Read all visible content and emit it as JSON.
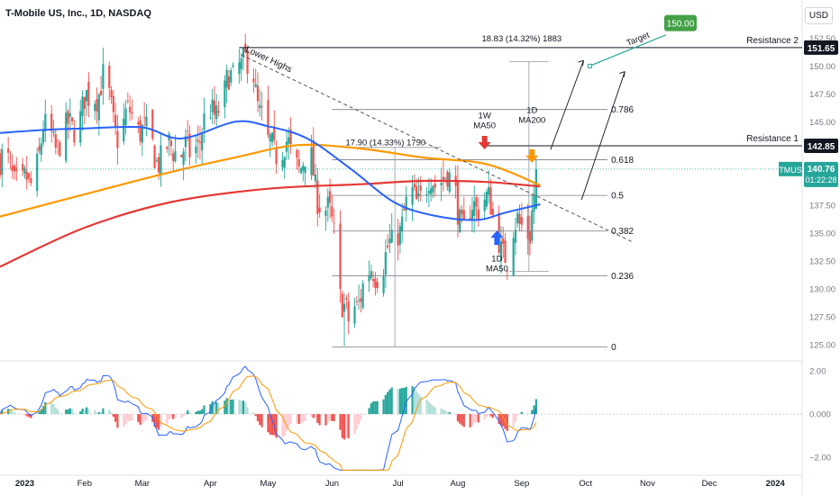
{
  "header": {
    "title": "T-Mobile US, Inc., 1D, NASDAQ",
    "currency": "USD"
  },
  "chart_data": {
    "type": "candlestick",
    "symbol": "TMUS",
    "price_axis": {
      "range": [
        123.8,
        153.5
      ],
      "ticks": [
        "152.50",
        "150.00",
        "147.50",
        "145.00",
        "142.50",
        "140.00",
        "137.50",
        "135.00",
        "132.50",
        "130.00",
        "127.50",
        "125.00"
      ]
    },
    "macd_axis": {
      "range": [
        -2.5,
        2.3
      ],
      "ticks": [
        "2.00",
        "0.000",
        "−2.00"
      ]
    },
    "x_axis": {
      "start": "2022-12-22",
      "end": "2024-01-15",
      "labels": [
        {
          "label": "2023",
          "date": "2023-01-03",
          "bold": true
        },
        {
          "label": "Feb",
          "date": "2023-02-01"
        },
        {
          "label": "Mar",
          "date": "2023-03-01"
        },
        {
          "label": "Apr",
          "date": "2023-04-03"
        },
        {
          "label": "May",
          "date": "2023-05-01"
        },
        {
          "label": "Jun",
          "date": "2023-06-01"
        },
        {
          "label": "Jul",
          "date": "2023-07-03"
        },
        {
          "label": "Aug",
          "date": "2023-08-01"
        },
        {
          "label": "Sep",
          "date": "2023-09-01"
        },
        {
          "label": "Oct",
          "date": "2023-10-02"
        },
        {
          "label": "Nov",
          "date": "2023-11-01"
        },
        {
          "label": "Dec",
          "date": "2023-12-01"
        },
        {
          "label": "2024",
          "date": "2024-01-02",
          "bold": true
        }
      ]
    },
    "price_path": [
      [
        "2022-12-22",
        141.5
      ],
      [
        "2023-01-05",
        139.0
      ],
      [
        "2023-01-12",
        144.0
      ],
      [
        "2023-01-20",
        143.0
      ],
      [
        "2023-02-01",
        146.5
      ],
      [
        "2023-02-10",
        148.5
      ],
      [
        "2023-02-17",
        144.0
      ],
      [
        "2023-02-24",
        146.0
      ],
      [
        "2023-03-03",
        143.5
      ],
      [
        "2023-03-10",
        141.5
      ],
      [
        "2023-03-17",
        143.0
      ],
      [
        "2023-03-24",
        142.0
      ],
      [
        "2023-03-31",
        144.5
      ],
      [
        "2023-04-10",
        147.5
      ],
      [
        "2023-04-17",
        150.8
      ],
      [
        "2023-04-24",
        149.0
      ],
      [
        "2023-05-01",
        142.5
      ],
      [
        "2023-05-08",
        143.0
      ],
      [
        "2023-05-15",
        141.5
      ],
      [
        "2023-05-22",
        141.0
      ],
      [
        "2023-05-26",
        138.0
      ],
      [
        "2023-06-02",
        135.5
      ],
      [
        "2023-06-05",
        130.0
      ],
      [
        "2023-06-09",
        126.5
      ],
      [
        "2023-06-14",
        129.5
      ],
      [
        "2023-06-21",
        131.5
      ],
      [
        "2023-06-28",
        133.0
      ],
      [
        "2023-07-03",
        135.5
      ],
      [
        "2023-07-10",
        138.0
      ],
      [
        "2023-07-17",
        139.0
      ],
      [
        "2023-07-24",
        140.5
      ],
      [
        "2023-07-31",
        138.5
      ],
      [
        "2023-08-04",
        135.0
      ],
      [
        "2023-08-09",
        137.5
      ],
      [
        "2023-08-14",
        138.5
      ],
      [
        "2023-08-21",
        135.0
      ],
      [
        "2023-08-25",
        131.8
      ],
      [
        "2023-08-30",
        137.0
      ],
      [
        "2023-09-05",
        134.0
      ],
      [
        "2023-09-08",
        140.76
      ]
    ],
    "ma_1w50": {
      "name": "1W MA50",
      "color": "#e53935",
      "points": [
        [
          "2022-12-22",
          132.0
        ],
        [
          "2023-02-01",
          135.5
        ],
        [
          "2023-03-15",
          137.8
        ],
        [
          "2023-05-01",
          139.0
        ],
        [
          "2023-06-15",
          139.4
        ],
        [
          "2023-07-15",
          139.7
        ],
        [
          "2023-08-15",
          139.6
        ],
        [
          "2023-09-10",
          139.2
        ]
      ]
    },
    "ma_1d200": {
      "name": "1D MA200",
      "color": "#ff9800",
      "points": [
        [
          "2022-12-22",
          136.5
        ],
        [
          "2023-02-01",
          138.5
        ],
        [
          "2023-03-15",
          140.5
        ],
        [
          "2023-04-15",
          141.8
        ],
        [
          "2023-05-15",
          142.9
        ],
        [
          "2023-06-15",
          142.6
        ],
        [
          "2023-07-15",
          141.8
        ],
        [
          "2023-08-15",
          141.2
        ],
        [
          "2023-09-10",
          139.3
        ]
      ]
    },
    "ma_1d50": {
      "name": "1D MA50",
      "color": "#2962ff",
      "points": [
        [
          "2022-12-22",
          144.0
        ],
        [
          "2023-01-15",
          144.3
        ],
        [
          "2023-02-01",
          144.4
        ],
        [
          "2023-03-01",
          144.5
        ],
        [
          "2023-03-20",
          143.5
        ],
        [
          "2023-04-15",
          145.0
        ],
        [
          "2023-05-01",
          144.6
        ],
        [
          "2023-05-20",
          143.5
        ],
        [
          "2023-06-10",
          140.8
        ],
        [
          "2023-07-01",
          137.8
        ],
        [
          "2023-07-20",
          136.6
        ],
        [
          "2023-08-10",
          136.2
        ],
        [
          "2023-08-25",
          136.9
        ],
        [
          "2023-09-10",
          137.6
        ]
      ]
    },
    "trendline": {
      "label": "Lower Highs",
      "from": [
        "2023-04-18",
        151.0
      ],
      "to": [
        "2023-10-25",
        134.2
      ]
    },
    "fib_levels": [
      {
        "level": "0",
        "price": 124.8
      },
      {
        "level": "0.236",
        "price": 131.2
      },
      {
        "level": "0.382",
        "price": 135.2
      },
      {
        "level": "0.5",
        "price": 138.4
      },
      {
        "level": "0.618",
        "price": 141.6
      },
      {
        "level": "0.786",
        "price": 146.1
      }
    ],
    "fib_range": [
      "2023-06-01",
      "2023-10-10"
    ],
    "resistances": [
      {
        "label": "Resistance 2",
        "price": 151.65,
        "value": "151.65",
        "from": "2023-04-17"
      },
      {
        "label": "Resistance 1",
        "price": 142.85,
        "value": "142.85",
        "from": "2023-08-14"
      }
    ],
    "measures": [
      {
        "label": "17.90 (14.33%) 1790",
        "at": [
          "2023-06-27",
          142.9
        ],
        "box": [
          "2023-06-09",
          "2023-07-24",
          124.8,
          142.7
        ]
      },
      {
        "label": "18.83 (14.32%) 1883",
        "at": [
          "2023-09-01",
          152.2
        ],
        "box": [
          "2023-08-26",
          "2023-09-14",
          131.6,
          150.4
        ]
      }
    ],
    "annotations": [
      {
        "text": "1W",
        "text2": "MA50",
        "at": [
          "2023-08-14",
          145.3
        ],
        "arrow": "down",
        "color": "#e53935",
        "arrow_at": [
          "2023-08-14",
          142.6
        ]
      },
      {
        "text": "1D",
        "text2": "MA200",
        "at": [
          "2023-09-06",
          145.8
        ],
        "arrow": "down",
        "color": "#ff9800",
        "arrow_at": [
          "2023-09-06",
          141.4
        ]
      },
      {
        "text": "1D",
        "text2": "MA50",
        "at": [
          "2023-08-20",
          133.6
        ],
        "arrow": "up",
        "color": "#2962ff",
        "arrow_at": [
          "2023-08-20",
          134.6
        ]
      }
    ],
    "target": {
      "label": "Target",
      "value": "150.00",
      "price": 150.0
    },
    "projection": [
      [
        "2023-09-15",
        142.5
      ],
      [
        "2023-10-01",
        150.5
      ],
      [
        "2023-10-04",
        150.0
      ],
      [
        "2023-11-10",
        152.8
      ]
    ],
    "last_price": {
      "symbol": "TMUS",
      "value": "140.76",
      "countdown": "01:22:28",
      "price": 140.76
    },
    "colors": {
      "up": "#26a69a",
      "down": "#ef5350",
      "trend": "#787b86",
      "macd": "#2962ff",
      "signal": "#ff9800",
      "hist_up": "#26a69a",
      "hist_down": "#ef5350"
    }
  }
}
